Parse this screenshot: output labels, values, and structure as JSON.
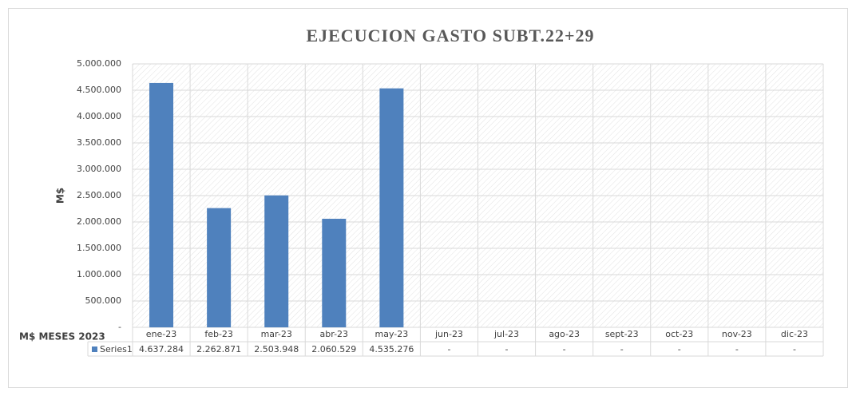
{
  "chart_data": {
    "type": "bar",
    "title": "EJECUCION GASTO SUBT.22+29",
    "y_label": "M$",
    "x_label": "M$ MESES 2023",
    "categories": [
      "ene-23",
      "feb-23",
      "mar-23",
      "abr-23",
      "may-23",
      "jun-23",
      "jul-23",
      "ago-23",
      "sept-23",
      "oct-23",
      "nov-23",
      "dic-23"
    ],
    "series": [
      {
        "name": "Series1",
        "color": "#4f81bd",
        "values": [
          4637284,
          2262871,
          2503948,
          2060529,
          4535276,
          null,
          null,
          null,
          null,
          null,
          null,
          null
        ],
        "value_labels": [
          "4.637.284",
          "2.262.871",
          "2.503.948",
          "2.060.529",
          "4.535.276",
          "-",
          "-",
          "-",
          "-",
          "-",
          "-",
          "-"
        ]
      }
    ],
    "ylim": [
      0,
      5000000
    ],
    "yticks": [
      {
        "value": 0,
        "label": "-"
      },
      {
        "value": 500000,
        "label": "500.000"
      },
      {
        "value": 1000000,
        "label": "1.000.000"
      },
      {
        "value": 1500000,
        "label": "1.500.000"
      },
      {
        "value": 2000000,
        "label": "2.000.000"
      },
      {
        "value": 2500000,
        "label": "2.500.000"
      },
      {
        "value": 3000000,
        "label": "3.000.000"
      },
      {
        "value": 3500000,
        "label": "3.500.000"
      },
      {
        "value": 4000000,
        "label": "4.000.000"
      },
      {
        "value": 4500000,
        "label": "4.500.000"
      },
      {
        "value": 5000000,
        "label": "5.000.000"
      }
    ],
    "grid": true,
    "data_table": true
  }
}
